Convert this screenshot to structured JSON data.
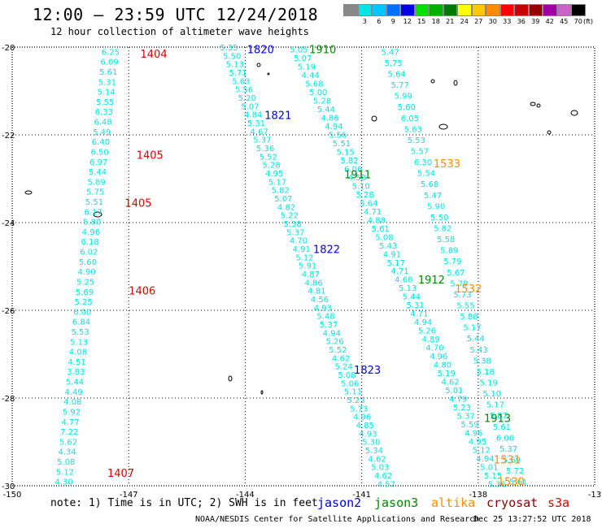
{
  "header": {
    "title": "12:00 – 23:59 UTC 12/24/2018",
    "subtitle": "12 hour collection of altimeter wave heights"
  },
  "scale": {
    "unit": "(ft)",
    "bins": [
      {
        "label": "",
        "color": "#888888"
      },
      {
        "label": "3",
        "color": "#00e5e5"
      },
      {
        "label": "6",
        "color": "#00c8ff"
      },
      {
        "label": "9",
        "color": "#0070ff"
      },
      {
        "label": "12",
        "color": "#0000e0"
      },
      {
        "label": "15",
        "color": "#00e000"
      },
      {
        "label": "18",
        "color": "#00b000"
      },
      {
        "label": "21",
        "color": "#007800"
      },
      {
        "label": "24",
        "color": "#ffff00"
      },
      {
        "label": "27",
        "color": "#ffc800"
      },
      {
        "label": "30",
        "color": "#ff8c00"
      },
      {
        "label": "33",
        "color": "#ff0000"
      },
      {
        "label": "36",
        "color": "#c80000"
      },
      {
        "label": "39",
        "color": "#960000"
      },
      {
        "label": "42",
        "color": "#a000a0"
      },
      {
        "label": "45",
        "color": "#c864c8"
      },
      {
        "label": "70",
        "color": "#000000"
      }
    ]
  },
  "map": {
    "lon_range": [
      -150,
      -135
    ],
    "lat_range": [
      -30,
      -20
    ],
    "x_ticks": [
      "-150",
      "-147",
      "-144",
      "-141",
      "-138",
      "-13"
    ],
    "y_ticks": [
      "-20",
      "-22",
      "-24",
      "-26",
      "-28",
      "-30"
    ],
    "grid": "dotted",
    "swh_color": "#00e5e5"
  },
  "tracks": [
    {
      "start": [
        -147.7,
        -20.1
      ],
      "end": [
        -148.9,
        -29.9
      ],
      "values": [
        "6.25",
        "6.09",
        "5.61",
        "5.31",
        "5.14",
        "5.55",
        "6.33",
        "6.48",
        "5.49",
        "6.40",
        "6.50",
        "6.97",
        "5.44",
        "5.89",
        "5.75",
        "5.51",
        "6.17",
        "5.80",
        "4.96",
        "6.18",
        "6.02",
        "5.60",
        "4.90",
        "5.25",
        "5.69",
        "5.25",
        "6.00",
        "6.84",
        "5.53",
        "5.13",
        "4.08",
        "4.51",
        "3.83",
        "5.44",
        "4.49",
        "4.08",
        "5.92",
        "4.77",
        "7.22",
        "5.62",
        "4.34",
        "5.08",
        "5.12",
        "4.30"
      ]
    },
    {
      "start": [
        -144.65,
        -20.0
      ],
      "end": [
        -140.6,
        -29.95
      ],
      "values": [
        "5.35",
        "5.50",
        "5.13",
        "5.71",
        "5.63",
        "5.56",
        "5.20",
        "5.07",
        "4.84",
        "5.31",
        "4.67",
        "5.37",
        "5.36",
        "5.52",
        "5.28",
        "4.95",
        "5.17",
        "5.82",
        "5.07",
        "4.82",
        "5.22",
        "5.38",
        "5.37",
        "4.70",
        "4.91",
        "5.12",
        "5.91",
        "4.87",
        "4.86",
        "4.81",
        "4.56",
        "4.93",
        "5.48",
        "5.37",
        "4.94",
        "5.26",
        "5.52",
        "4.62",
        "5.24",
        "5.08",
        "5.06",
        "5.11",
        "5.23",
        "5.73",
        "4.96",
        "4.85",
        "4.93",
        "5.30",
        "5.34",
        "4.62",
        "5.03",
        "4.62",
        "4.57"
      ]
    },
    {
      "start": [
        -142.85,
        -20.05
      ],
      "end": [
        -137.75,
        -29.95
      ],
      "values": [
        "5.05",
        "5.07",
        "5.19",
        "4.44",
        "5.68",
        "5.00",
        "5.28",
        "5.44",
        "4.86",
        "4.94",
        "5.56",
        "5.51",
        "5.15",
        "5.82",
        "6.06",
        "4.58",
        "5.10",
        "5.28",
        "5.64",
        "4.71",
        "4.88",
        "5.61",
        "5.08",
        "5.43",
        "4.91",
        "5.17",
        "4.71",
        "4.68",
        "5.13",
        "5.44",
        "5.31",
        "4.71",
        "4.94",
        "5.26",
        "4.89",
        "4.70",
        "4.96",
        "4.80",
        "5.19",
        "4.62",
        "5.01",
        "4.79",
        "5.23",
        "5.37",
        "5.59",
        "4.96",
        "4.95",
        "5.12",
        "4.94",
        "5.01",
        "5.15",
        "5.36"
      ]
    },
    {
      "start": [
        -140.5,
        -20.1
      ],
      "end": [
        -137.2,
        -29.9
      ],
      "values": [
        "5.47",
        "5.75",
        "5.64",
        "5.77",
        "5.99",
        "5.60",
        "6.05",
        "5.63",
        "5.53",
        "5.57",
        "6.30",
        "5.54",
        "5.68",
        "5.47",
        "5.90",
        "5.50",
        "5.82",
        "5.58",
        "5.89",
        "5.79",
        "5.67",
        "5.79",
        "5.73",
        "5.55",
        "5.88",
        "5.17",
        "5.44",
        "5.43",
        "5.38",
        "5.18",
        "5.19",
        "5.10",
        "5.17",
        "5.87",
        "5.61",
        "6.06",
        "5.37",
        "5.69",
        "5.72",
        "5.61"
      ]
    }
  ],
  "pass_labels": [
    {
      "text": "1404",
      "lon": -146.7,
      "lat": -20.15,
      "sat": "s3a"
    },
    {
      "text": "1405",
      "lon": -146.8,
      "lat": -22.45,
      "sat": "s3a"
    },
    {
      "text": "1405",
      "lon": -147.1,
      "lat": -23.55,
      "sat": "s3a"
    },
    {
      "text": "1406",
      "lon": -147.0,
      "lat": -25.55,
      "sat": "s3a"
    },
    {
      "text": "1407",
      "lon": -147.55,
      "lat": -29.7,
      "sat": "s3a"
    },
    {
      "text": "1820",
      "lon": -143.95,
      "lat": -20.05,
      "sat": "jason2"
    },
    {
      "text": "1821",
      "lon": -143.5,
      "lat": -21.55,
      "sat": "jason2"
    },
    {
      "text": "1822",
      "lon": -142.25,
      "lat": -24.6,
      "sat": "jason2"
    },
    {
      "text": "1823",
      "lon": -141.2,
      "lat": -27.35,
      "sat": "jason2"
    },
    {
      "text": "1910",
      "lon": -142.35,
      "lat": -20.05,
      "sat": "jason3"
    },
    {
      "text": "1911",
      "lon": -141.45,
      "lat": -22.9,
      "sat": "jason3"
    },
    {
      "text": "1912",
      "lon": -139.55,
      "lat": -25.3,
      "sat": "jason3"
    },
    {
      "text": "1913",
      "lon": -137.85,
      "lat": -28.45,
      "sat": "jason3"
    },
    {
      "text": "1533",
      "lon": -139.15,
      "lat": -22.65,
      "sat": "altika"
    },
    {
      "text": "1532",
      "lon": -138.6,
      "lat": -25.5,
      "sat": "altika"
    },
    {
      "text": "1531",
      "lon": -137.6,
      "lat": -29.4,
      "sat": "altika"
    },
    {
      "text": "1530",
      "lon": -137.5,
      "lat": -29.9,
      "sat": "altika"
    }
  ],
  "legend": {
    "jason2": {
      "label": "jason2",
      "color": "#0000ee"
    },
    "jason3": {
      "label": "jason3",
      "color": "#008800"
    },
    "altika": {
      "label": "altika",
      "color": "#ff8c00"
    },
    "cryosat": {
      "label": "cryosat",
      "color": "#8b0000"
    },
    "s3a": {
      "label": "s3a",
      "color": "#e00000"
    }
  },
  "note": "note: 1) Time is in UTC; 2) SWH is in feet",
  "footer": {
    "source": "NOAA/NESDIS Center for Satellite Applications and Research",
    "timestamp": "Dec 25 13:27:52 UTC 2018"
  }
}
